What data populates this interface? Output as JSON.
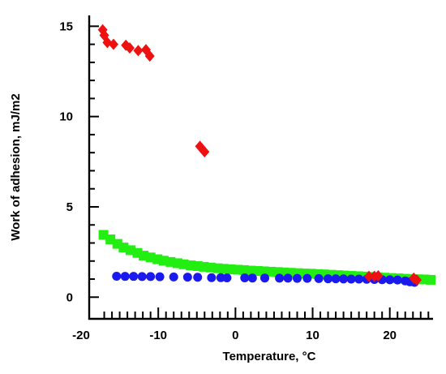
{
  "chart_data": {
    "type": "scatter",
    "title": "",
    "xlabel": "Temperature, °C",
    "ylabel": "Work of adhesion, mJ/m2",
    "xlim": [
      -20,
      25.6
    ],
    "ylim": [
      -1.2,
      15.6
    ],
    "x_major_ticks": [
      -20,
      -10,
      0,
      10,
      20
    ],
    "x_tick_labels": [
      "-20",
      "-10",
      "0",
      "10",
      "20"
    ],
    "x_minor_step": 1,
    "y_major_ticks": [
      0,
      5,
      10,
      15
    ],
    "y_tick_labels": [
      "0",
      "5",
      "10",
      "15"
    ],
    "y_minor_step": 1,
    "grid": false,
    "legend": "none",
    "series": [
      {
        "marker": "square",
        "color": "#22ee11",
        "points": [
          [
            -17.1,
            3.45
          ],
          [
            -16.2,
            3.2
          ],
          [
            -15.3,
            2.95
          ],
          [
            -14.5,
            2.75
          ],
          [
            -13.6,
            2.6
          ],
          [
            -12.7,
            2.45
          ],
          [
            -11.9,
            2.3
          ],
          [
            -11.0,
            2.2
          ],
          [
            -10.1,
            2.1
          ],
          [
            -9.3,
            2.02
          ],
          [
            -8.4,
            1.95
          ],
          [
            -7.5,
            1.88
          ],
          [
            -6.7,
            1.82
          ],
          [
            -5.8,
            1.76
          ],
          [
            -4.9,
            1.72
          ],
          [
            -4.1,
            1.68
          ],
          [
            -3.2,
            1.64
          ],
          [
            -2.3,
            1.6
          ],
          [
            -1.5,
            1.57
          ],
          [
            -0.6,
            1.54
          ],
          [
            0.3,
            1.52
          ],
          [
            1.1,
            1.5
          ],
          [
            2.0,
            1.47
          ],
          [
            2.9,
            1.45
          ],
          [
            3.7,
            1.43
          ],
          [
            4.6,
            1.41
          ],
          [
            5.5,
            1.39
          ],
          [
            6.3,
            1.37
          ],
          [
            7.2,
            1.35
          ],
          [
            8.1,
            1.33
          ],
          [
            8.9,
            1.31
          ],
          [
            9.8,
            1.3
          ],
          [
            10.7,
            1.28
          ],
          [
            11.5,
            1.26
          ],
          [
            12.4,
            1.24
          ],
          [
            13.3,
            1.22
          ],
          [
            14.1,
            1.2
          ],
          [
            15.0,
            1.18
          ],
          [
            15.9,
            1.16
          ],
          [
            16.7,
            1.14
          ],
          [
            17.6,
            1.12
          ],
          [
            18.5,
            1.1
          ],
          [
            19.3,
            1.08
          ],
          [
            20.2,
            1.06
          ],
          [
            21.1,
            1.04
          ],
          [
            21.9,
            1.02
          ],
          [
            22.8,
            1.0
          ],
          [
            23.7,
            0.99
          ],
          [
            24.5,
            0.98
          ],
          [
            25.3,
            0.96
          ]
        ]
      },
      {
        "marker": "circle",
        "color": "#1a1aee",
        "points": [
          [
            -15.4,
            1.16
          ],
          [
            -14.3,
            1.15
          ],
          [
            -13.2,
            1.15
          ],
          [
            -12.1,
            1.14
          ],
          [
            -11.0,
            1.14
          ],
          [
            -9.8,
            1.13
          ],
          [
            -8.0,
            1.12
          ],
          [
            -6.2,
            1.11
          ],
          [
            -4.9,
            1.1
          ],
          [
            -3.1,
            1.08
          ],
          [
            -1.9,
            1.08
          ],
          [
            -1.1,
            1.07
          ],
          [
            1.2,
            1.07
          ],
          [
            2.2,
            1.06
          ],
          [
            3.8,
            1.06
          ],
          [
            5.7,
            1.05
          ],
          [
            6.8,
            1.05
          ],
          [
            8.0,
            1.04
          ],
          [
            9.3,
            1.04
          ],
          [
            10.8,
            1.03
          ],
          [
            12.0,
            1.02
          ],
          [
            13.0,
            1.02
          ],
          [
            14.0,
            1.01
          ],
          [
            15.0,
            1.0
          ],
          [
            16.0,
            1.0
          ],
          [
            17.0,
            0.99
          ],
          [
            18.0,
            0.98
          ],
          [
            19.0,
            0.97
          ],
          [
            20.0,
            0.96
          ],
          [
            21.0,
            0.95
          ],
          [
            22.0,
            0.9
          ],
          [
            22.6,
            0.85
          ],
          [
            23.2,
            0.82
          ]
        ]
      },
      {
        "marker": "diamond",
        "color": "#ee1111",
        "points": [
          [
            -17.2,
            14.8
          ],
          [
            -17.0,
            14.5
          ],
          [
            -16.6,
            14.1
          ],
          [
            -15.8,
            14.0
          ],
          [
            -14.2,
            13.95
          ],
          [
            -13.7,
            13.8
          ],
          [
            -12.6,
            13.65
          ],
          [
            -11.6,
            13.7
          ],
          [
            -11.1,
            13.35
          ],
          [
            -4.6,
            8.35
          ],
          [
            -4.0,
            8.05
          ],
          [
            17.3,
            1.15
          ],
          [
            18.0,
            1.15
          ],
          [
            18.5,
            1.18
          ],
          [
            23.1,
            1.05
          ],
          [
            23.5,
            0.95
          ]
        ]
      }
    ]
  }
}
